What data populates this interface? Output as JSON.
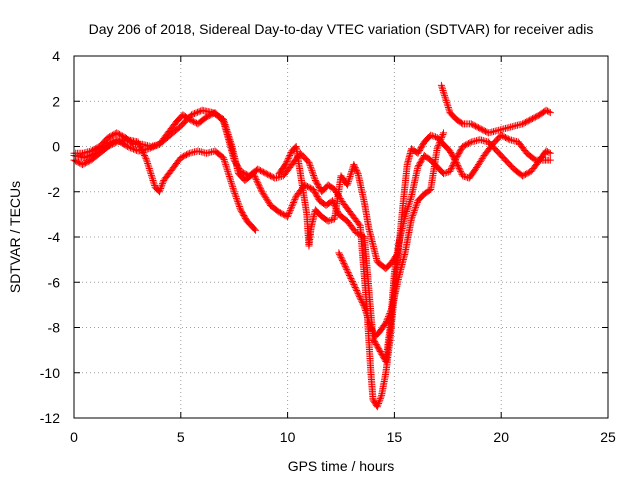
{
  "chart_data": {
    "type": "scatter",
    "title": "Day 206 of 2018, Sidereal Day-to-day VTEC variation (SDTVAR) for receiver adis",
    "xlabel": "GPS time / hours",
    "ylabel": "SDTVAR / TECUs",
    "xlim": [
      0,
      25
    ],
    "ylim": [
      -12,
      4
    ],
    "xticks": [
      0,
      5,
      10,
      15,
      20,
      25
    ],
    "yticks": [
      -12,
      -10,
      -8,
      -6,
      -4,
      -2,
      0,
      2,
      4
    ],
    "grid": true,
    "marker": "plus",
    "color": "#ff0000",
    "series": [
      {
        "points": [
          [
            0,
            -0.3
          ],
          [
            0.4,
            -0.3
          ],
          [
            0.8,
            -0.2
          ],
          [
            1.2,
            0
          ],
          [
            1.6,
            0.4
          ],
          [
            2.0,
            0.6
          ],
          [
            2.4,
            0.4
          ],
          [
            2.8,
            0.1
          ],
          [
            3.2,
            0.1
          ],
          [
            3.6,
            0
          ],
          [
            4.0,
            0.1
          ],
          [
            4.4,
            0.6
          ],
          [
            4.8,
            1.1
          ],
          [
            5.1,
            1.4
          ],
          [
            5.4,
            1.2
          ],
          [
            5.8,
            1.0
          ],
          [
            6.2,
            1.3
          ],
          [
            6.6,
            1.5
          ],
          [
            7.0,
            1.1
          ],
          [
            7.3,
            0.1
          ],
          [
            7.5,
            -0.6
          ],
          [
            7.8,
            -1.1
          ],
          [
            8.2,
            -1.3
          ],
          [
            8.6,
            -1.0
          ],
          [
            9.0,
            -1.2
          ],
          [
            9.4,
            -1.4
          ],
          [
            9.8,
            -1.3
          ],
          [
            10.2,
            -0.8
          ],
          [
            10.6,
            -0.3
          ],
          [
            11.0,
            -0.7
          ],
          [
            11.3,
            -1.5
          ],
          [
            11.6,
            -2.0
          ],
          [
            11.9,
            -1.7
          ],
          [
            12.2,
            -1.9
          ],
          [
            12.6,
            -2.5
          ],
          [
            13.0,
            -3.0
          ],
          [
            13.4,
            -3.5
          ],
          [
            13.7,
            -7.0
          ],
          [
            13.9,
            -10.0
          ],
          [
            14.0,
            -11.2
          ],
          [
            14.2,
            -11.5
          ],
          [
            14.4,
            -11.0
          ],
          [
            14.6,
            -10.0
          ],
          [
            14.8,
            -8.5
          ],
          [
            15.0,
            -6.5
          ],
          [
            15.2,
            -4.5
          ],
          [
            15.4,
            -2.6
          ],
          [
            15.6,
            -0.8
          ],
          [
            15.8,
            -0.1
          ],
          [
            16.1,
            -0.3
          ],
          [
            16.4,
            0.2
          ],
          [
            16.7,
            0.5
          ],
          [
            17.0,
            0.4
          ],
          [
            17.3,
            0.1
          ],
          [
            17.6,
            -0.2
          ],
          [
            17.9,
            -0.7
          ],
          [
            18.2,
            -1.3
          ],
          [
            18.5,
            -1.4
          ],
          [
            18.8,
            -1.0
          ],
          [
            19.2,
            -0.4
          ],
          [
            19.6,
            0.1
          ],
          [
            20.0,
            0.5
          ],
          [
            20.4,
            0.3
          ],
          [
            20.8,
            0.2
          ],
          [
            21.2,
            -0.3
          ],
          [
            21.6,
            -0.6
          ],
          [
            22.0,
            -0.6
          ],
          [
            22.3,
            -0.6
          ]
        ]
      },
      {
        "points": [
          [
            0,
            -0.6
          ],
          [
            0.4,
            -0.8
          ],
          [
            0.8,
            -0.6
          ],
          [
            1.2,
            -0.3
          ],
          [
            1.6,
            0.0
          ],
          [
            2.0,
            0.2
          ],
          [
            2.5,
            0.3
          ],
          [
            3.0,
            0.2
          ],
          [
            3.4,
            -0.6
          ],
          [
            3.8,
            -1.8
          ],
          [
            4.0,
            -2.0
          ],
          [
            4.2,
            -1.5
          ],
          [
            4.6,
            -1.0
          ],
          [
            5.0,
            -0.5
          ],
          [
            5.4,
            -0.3
          ],
          [
            5.8,
            -0.2
          ],
          [
            6.2,
            -0.3
          ],
          [
            6.6,
            -0.2
          ],
          [
            7.0,
            -0.5
          ],
          [
            7.3,
            -1.4
          ],
          [
            7.5,
            -2.0
          ],
          [
            7.8,
            -2.8
          ],
          [
            8.1,
            -3.3
          ],
          [
            8.4,
            -3.6
          ],
          [
            8.5,
            -3.7
          ]
        ]
      },
      {
        "points": [
          [
            0,
            -0.4
          ],
          [
            0.5,
            -0.5
          ],
          [
            1.0,
            -0.3
          ],
          [
            1.5,
            0.1
          ],
          [
            2.0,
            0.3
          ],
          [
            2.5,
            0.0
          ],
          [
            3.0,
            -0.2
          ],
          [
            3.5,
            -0.1
          ],
          [
            4.0,
            0.1
          ],
          [
            4.5,
            0.5
          ],
          [
            5.0,
            0.9
          ],
          [
            5.5,
            1.4
          ],
          [
            6.0,
            1.6
          ],
          [
            6.5,
            1.5
          ],
          [
            7.0,
            1.2
          ],
          [
            7.4,
            0.0
          ],
          [
            7.7,
            -1.2
          ],
          [
            8.0,
            -1.5
          ],
          [
            8.4,
            -1.2
          ],
          [
            8.8,
            -2.0
          ],
          [
            9.2,
            -2.6
          ],
          [
            9.6,
            -2.9
          ],
          [
            10.0,
            -3.1
          ],
          [
            10.4,
            -2.2
          ],
          [
            10.8,
            -1.7
          ],
          [
            11.2,
            -1.9
          ],
          [
            11.5,
            -2.4
          ],
          [
            11.8,
            -2.6
          ],
          [
            12.1,
            -2.4
          ],
          [
            12.4,
            -3.0
          ],
          [
            12.8,
            -3.3
          ],
          [
            13.2,
            -3.8
          ],
          [
            13.6,
            -4.0
          ],
          [
            14.0,
            -8.5
          ],
          [
            14.3,
            -9.0
          ],
          [
            14.6,
            -9.5
          ],
          [
            14.8,
            -8.0
          ],
          [
            15.0,
            -5.6
          ],
          [
            15.2,
            -4.3
          ],
          [
            15.5,
            -3.1
          ],
          [
            15.8,
            -2.2
          ],
          [
            16.1,
            -0.9
          ],
          [
            16.4,
            -0.4
          ],
          [
            16.7,
            -0.6
          ],
          [
            17.0,
            -0.9
          ],
          [
            17.3,
            -1.2
          ],
          [
            17.6,
            -1.1
          ],
          [
            17.9,
            -0.5
          ],
          [
            18.2,
            0.0
          ],
          [
            18.6,
            0.2
          ],
          [
            19.0,
            0.3
          ],
          [
            19.4,
            0.2
          ],
          [
            19.8,
            -0.2
          ],
          [
            20.2,
            -0.6
          ],
          [
            20.6,
            -1.0
          ],
          [
            21.0,
            -1.3
          ],
          [
            21.4,
            -1.1
          ],
          [
            21.8,
            -0.6
          ],
          [
            22.1,
            -0.2
          ],
          [
            22.3,
            -0.3
          ]
        ]
      },
      {
        "points": [
          [
            9.6,
            -1.2
          ],
          [
            9.9,
            -0.8
          ],
          [
            10.2,
            -0.2
          ],
          [
            10.4,
            0.0
          ],
          [
            10.6,
            -1.2
          ],
          [
            10.8,
            -2.4
          ],
          [
            10.9,
            -3.0
          ],
          [
            11.0,
            -4.4
          ],
          [
            11.1,
            -3.6
          ],
          [
            11.3,
            -2.8
          ],
          [
            11.6,
            -3.1
          ],
          [
            11.9,
            -3.3
          ],
          [
            12.2,
            -3.2
          ],
          [
            12.5,
            -1.3
          ],
          [
            12.8,
            -1.7
          ],
          [
            13.1,
            -0.8
          ],
          [
            13.3,
            -1.2
          ],
          [
            13.6,
            -2.5
          ],
          [
            13.8,
            -3.6
          ],
          [
            14.2,
            -5.1
          ],
          [
            14.6,
            -5.4
          ],
          [
            14.9,
            -5.1
          ],
          [
            15.1,
            -4.8
          ]
        ]
      },
      {
        "points": [
          [
            17.2,
            2.7
          ],
          [
            17.4,
            2.1
          ],
          [
            17.6,
            1.5
          ],
          [
            17.9,
            1.2
          ],
          [
            18.2,
            1.0
          ],
          [
            18.6,
            1.0
          ],
          [
            19.0,
            0.8
          ],
          [
            19.4,
            0.6
          ],
          [
            19.8,
            0.7
          ],
          [
            20.2,
            0.8
          ],
          [
            20.6,
            0.9
          ],
          [
            21.0,
            1.0
          ],
          [
            21.4,
            1.2
          ],
          [
            21.8,
            1.4
          ],
          [
            22.1,
            1.6
          ],
          [
            22.3,
            1.5
          ]
        ]
      },
      {
        "points": [
          [
            12.4,
            -4.7
          ],
          [
            12.7,
            -5.3
          ],
          [
            13.0,
            -5.9
          ],
          [
            13.3,
            -6.5
          ],
          [
            13.6,
            -7.1
          ],
          [
            13.9,
            -8.0
          ],
          [
            14.1,
            -8.4
          ],
          [
            14.3,
            -8.2
          ],
          [
            14.6,
            -7.8
          ],
          [
            14.9,
            -7.1
          ],
          [
            15.2,
            -5.8
          ],
          [
            15.5,
            -4.7
          ],
          [
            15.8,
            -3.2
          ],
          [
            16.1,
            -2.4
          ],
          [
            16.4,
            -2.1
          ],
          [
            16.7,
            -1.9
          ],
          [
            17.0,
            -0.1
          ],
          [
            17.3,
            0.6
          ]
        ]
      }
    ]
  }
}
